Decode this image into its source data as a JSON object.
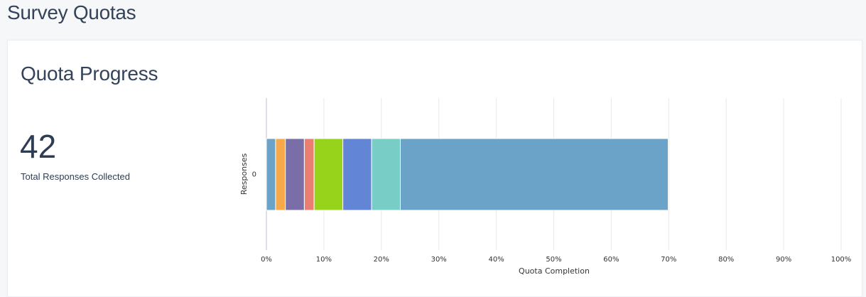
{
  "page": {
    "title": "Survey Quotas"
  },
  "card": {
    "title": "Quota Progress",
    "total_responses": "42",
    "total_responses_label": "Total Responses Collected"
  },
  "chart_data": {
    "type": "bar",
    "orientation": "horizontal",
    "stacked": true,
    "categories": [
      "0"
    ],
    "ylabel": "Responses",
    "xlabel": "Quota Completion",
    "xlim": [
      0,
      100
    ],
    "x_ticks": [
      "0%",
      "10%",
      "20%",
      "30%",
      "40%",
      "50%",
      "60%",
      "70%",
      "80%",
      "90%",
      "100%"
    ],
    "grid": true,
    "series": [
      {
        "values": [
          1.6
        ],
        "color": "#6aa2c8"
      },
      {
        "values": [
          1.7
        ],
        "color": "#f7a94a"
      },
      {
        "values": [
          3.3
        ],
        "color": "#7a6ea8"
      },
      {
        "values": [
          1.7
        ],
        "color": "#ea7e73"
      },
      {
        "values": [
          5.0
        ],
        "color": "#98d31b"
      },
      {
        "values": [
          5.0
        ],
        "color": "#6286d5"
      },
      {
        "values": [
          5.0
        ],
        "color": "#78cdc6"
      },
      {
        "values": [
          46.6
        ],
        "color": "#6aa2c8"
      }
    ]
  }
}
